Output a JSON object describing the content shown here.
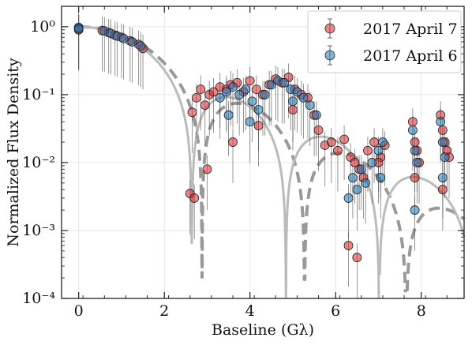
{
  "chart_data": {
    "type": "scatter",
    "xlabel": "Baseline (Gλ)",
    "ylabel": "Normalized Flux Density",
    "xlim": [
      -0.4,
      9.0
    ],
    "ylim": [
      0.0001,
      2.0
    ],
    "yscale": "log",
    "grid": true,
    "legend_position": "top-right",
    "x_ticks": [
      0,
      2,
      4,
      6,
      8
    ],
    "x_tick_labels": [
      "0",
      "2",
      "4",
      "6",
      "8"
    ],
    "y_ticks": [
      0.0001,
      0.001,
      0.01,
      0.1,
      1
    ],
    "y_tick_labels": [
      "10⁻⁴",
      "10⁻³",
      "10⁻²",
      "10⁻¹",
      "10⁰"
    ],
    "series": [
      {
        "name": "2017 April 7",
        "color": "#d62728",
        "x": [
          0.0,
          0.0,
          0.55,
          0.7,
          0.85,
          1.0,
          1.2,
          1.4,
          1.5,
          2.6,
          2.65,
          2.75,
          2.85,
          2.95,
          3.05,
          3.15,
          3.3,
          3.45,
          3.55,
          3.7,
          3.85,
          4.0,
          4.15,
          4.3,
          4.45,
          4.6,
          4.75,
          4.9,
          5.05,
          5.2,
          5.35,
          5.5,
          5.6,
          5.75,
          5.9,
          6.05,
          6.2,
          6.35,
          6.45,
          6.55,
          6.65,
          6.75,
          6.9,
          7.05,
          7.15,
          7.8,
          7.85,
          7.9,
          7.95,
          8.45,
          8.5,
          8.55,
          8.6,
          8.65,
          2.7,
          3.0,
          3.6,
          4.2,
          5.0,
          6.3,
          6.5,
          7.0,
          7.85,
          8.5
        ],
        "y": [
          0.95,
          0.9,
          0.88,
          0.82,
          0.75,
          0.7,
          0.62,
          0.55,
          0.48,
          0.0035,
          0.055,
          0.09,
          0.12,
          0.07,
          0.1,
          0.11,
          0.13,
          0.12,
          0.14,
          0.15,
          0.11,
          0.16,
          0.12,
          0.1,
          0.14,
          0.17,
          0.15,
          0.18,
          0.12,
          0.1,
          0.09,
          0.05,
          0.03,
          0.018,
          0.02,
          0.015,
          0.022,
          0.012,
          0.01,
          0.008,
          0.006,
          0.015,
          0.02,
          0.012,
          0.018,
          0.04,
          0.02,
          0.015,
          0.01,
          0.05,
          0.03,
          0.02,
          0.015,
          0.012,
          0.003,
          0.008,
          0.02,
          0.035,
          0.06,
          0.0006,
          0.0004,
          0.01,
          0.006,
          0.004
        ]
      },
      {
        "name": "2017 April 6",
        "color": "#1f77b4",
        "x": [
          0.0,
          0.0,
          0.6,
          0.75,
          0.9,
          1.05,
          1.25,
          1.45,
          3.3,
          3.45,
          3.6,
          3.75,
          3.9,
          4.05,
          4.2,
          4.35,
          4.5,
          4.65,
          4.8,
          4.95,
          5.1,
          5.25,
          5.4,
          5.55,
          6.4,
          6.5,
          6.6,
          6.7,
          6.85,
          7.0,
          7.1,
          7.8,
          7.85,
          7.9,
          8.45,
          8.5,
          8.55,
          3.5,
          4.0,
          5.0,
          6.3,
          7.05,
          7.85,
          8.5
        ],
        "y": [
          0.98,
          0.93,
          0.87,
          0.8,
          0.73,
          0.67,
          0.6,
          0.52,
          0.09,
          0.11,
          0.13,
          0.1,
          0.12,
          0.08,
          0.06,
          0.1,
          0.14,
          0.16,
          0.15,
          0.12,
          0.11,
          0.09,
          0.07,
          0.05,
          0.006,
          0.004,
          0.008,
          0.005,
          0.01,
          0.015,
          0.02,
          0.03,
          0.015,
          0.01,
          0.04,
          0.02,
          0.012,
          0.05,
          0.04,
          0.08,
          0.003,
          0.006,
          0.002,
          0.006
        ]
      }
    ],
    "model_curves": [
      {
        "name": "",
        "style": "dashed",
        "color": "#999999"
      },
      {
        "name": "",
        "style": "solid",
        "color": "#bbbbbb"
      }
    ]
  }
}
